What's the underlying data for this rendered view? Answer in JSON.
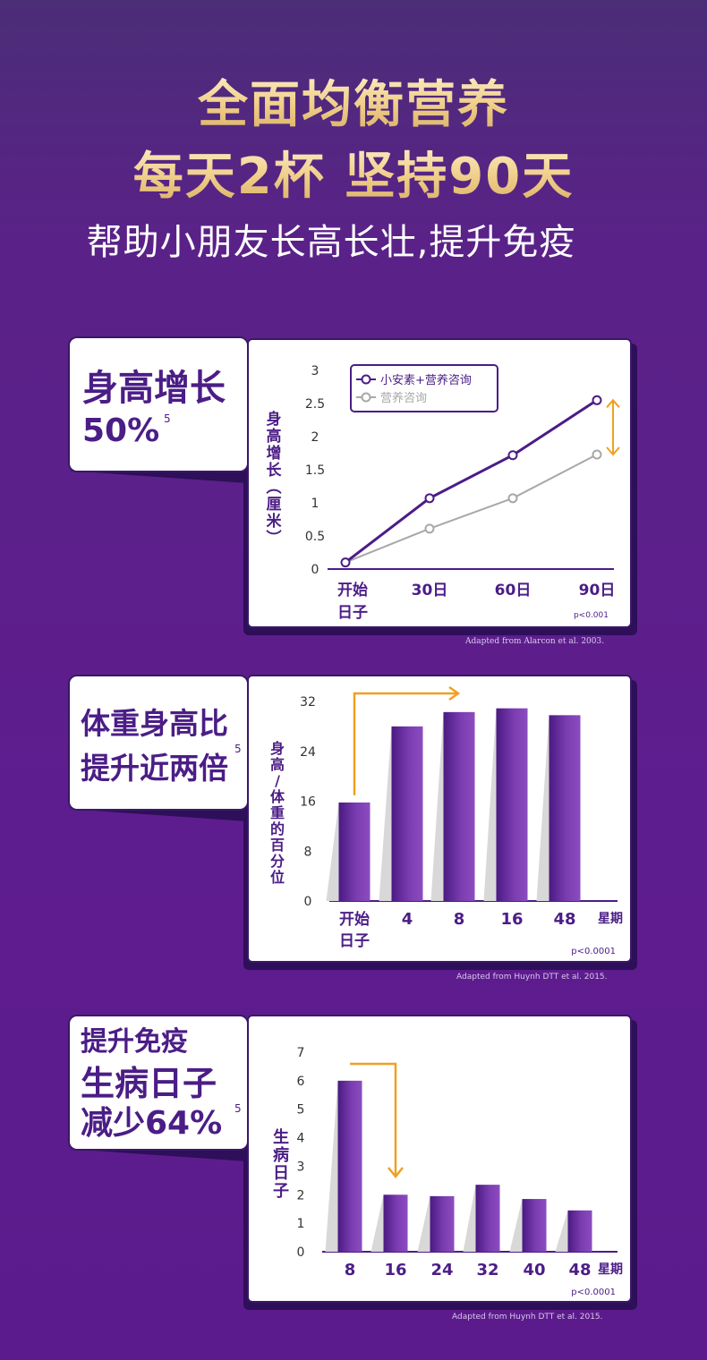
{
  "header": {
    "title_line1": "全面均衡营养",
    "title_line2": "每天2杯  坚持90天",
    "subtitle": "帮助小朋友长高长壮,提升免疫"
  },
  "colors": {
    "purple_dark": "#4b1d86",
    "purple_bar": "#6a2f9e",
    "grey_series": "#a8a8a8",
    "orange_arrow": "#f0a020",
    "background": "#5a1f8a"
  },
  "panels": [
    {
      "tab_line1": "身高增长",
      "tab_line2": "50%",
      "superscript": "5",
      "p_value": "p<0.001",
      "source": "Adapted from Alarcon et al. 2003."
    },
    {
      "tab_line1": "体重身高比",
      "tab_line2": "提升近两倍",
      "superscript": "5",
      "p_value": "p<0.0001",
      "source": "Adapted from Huynh DTT et al. 2015."
    },
    {
      "tab_line1": "提升免疫",
      "tab_line2": "生病日子",
      "tab_line3": "减少64%",
      "superscript": "5",
      "p_value": "p<0.0001",
      "source": "Adapted from Huynh DTT et al. 2015."
    }
  ],
  "chart_data": [
    {
      "type": "line",
      "ylabel": "身高增长（厘米）",
      "ylim": [
        0,
        3
      ],
      "y_ticks": [
        "0",
        "0.5",
        "1",
        "1.5",
        "2",
        "2.5",
        "3"
      ],
      "categories": [
        "开始日子",
        "30日",
        "60日",
        "90日"
      ],
      "series": [
        {
          "name": "小安素+营养咨询",
          "values": [
            0.1,
            1.07,
            1.72,
            2.55
          ]
        },
        {
          "name": "营养咨询",
          "values": [
            0.1,
            0.61,
            1.07,
            1.73
          ]
        }
      ],
      "legend": "top-left"
    },
    {
      "type": "bar",
      "ylabel": "身高/体重的百分位",
      "xlabel": "星期",
      "ylim": [
        0,
        32
      ],
      "y_ticks": [
        "0",
        "8",
        "16",
        "24",
        "32"
      ],
      "categories": [
        "开始日子",
        "4",
        "8",
        "16",
        "48"
      ],
      "values": [
        15.8,
        28,
        30.3,
        30.9,
        29.8
      ]
    },
    {
      "type": "bar",
      "ylabel": "生病日子",
      "xlabel": "星期",
      "ylim": [
        0,
        7
      ],
      "y_ticks": [
        "0",
        "1",
        "2",
        "3",
        "4",
        "5",
        "6",
        "7"
      ],
      "categories": [
        "8",
        "16",
        "24",
        "32",
        "40",
        "48"
      ],
      "values": [
        6.0,
        2.0,
        1.95,
        2.35,
        1.85,
        1.45
      ]
    }
  ]
}
